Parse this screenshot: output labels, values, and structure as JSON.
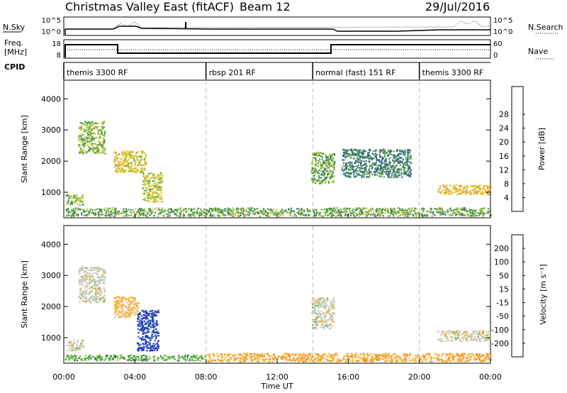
{
  "header": {
    "title": "Christmas Valley East (fitACF)",
    "beam": "Beam 12",
    "date": "29/Jul/2016"
  },
  "strip_labels": {
    "nsky": "N.Sky",
    "freq": "Freq.",
    "freq_unit": "[MHz]",
    "cpid": "CPID",
    "nsearch": "N.Search",
    "nave": "Nave",
    "nsky_top": "10^5",
    "nsky_bottom": "10^0",
    "nsearch_top": "10^5",
    "nsearch_bottom": "10^0",
    "freq_top": "18",
    "freq_bottom": "8",
    "nave_top": "60",
    "nave_bottom": "0"
  },
  "cpid_segments": [
    {
      "label": "themis 3300 RF",
      "start_hour": 0
    },
    {
      "label": "rbsp 201 RF",
      "start_hour": 8
    },
    {
      "label": "normal (fast) 151 RF",
      "start_hour": 14
    },
    {
      "label": "themis 3300 RF",
      "start_hour": 20
    }
  ],
  "axes": {
    "ylabel": "Slant Range [km]",
    "xlabel": "Time UT",
    "x_ticks": [
      "00:00",
      "04:00",
      "08:00",
      "12:00",
      "16:00",
      "20:00",
      "00:00"
    ],
    "y_ticks": [
      "1000",
      "2000",
      "3000",
      "4000"
    ]
  },
  "power_colorbar": {
    "label": "Power [dB]",
    "ticks": [
      "4",
      "8",
      "12",
      "16",
      "20",
      "24",
      "28"
    ],
    "colors": [
      "#1f2fd8",
      "#2f5aa8",
      "#3e7b5c",
      "#5da54a",
      "#b6c93c",
      "#f3c21f",
      "#f39122",
      "#ef4d1c",
      "#e51c1c"
    ]
  },
  "velocity_colorbar": {
    "label": "Velocity [m s⁻¹]",
    "ticks": [
      "200",
      "100",
      "50",
      "15",
      "-15",
      "-50",
      "-100",
      "-200"
    ],
    "colors": [
      "#1a2fc6",
      "#2e55a6",
      "#2f7a4a",
      "#6fbf3c",
      "#c8c8c0",
      "#f4b13a",
      "#f28a1e",
      "#ee5a1a",
      "#e11a1a"
    ]
  },
  "chart_data": [
    {
      "type": "heatmap",
      "panel": "power",
      "x_range_hours": [
        0,
        24
      ],
      "y_range_km": [
        180,
        4600
      ],
      "grid_vertical_hours": [
        8,
        14,
        20
      ],
      "regions": [
        {
          "x": [
            0.1,
            1.1
          ],
          "y": [
            600,
            950
          ],
          "value_db": 14
        },
        {
          "x": [
            0.8,
            2.3
          ],
          "y": [
            2250,
            3300
          ],
          "value_db": 14
        },
        {
          "x": [
            2.8,
            4.6
          ],
          "y": [
            1650,
            2350
          ],
          "value_db": 18
        },
        {
          "x": [
            4.4,
            5.5
          ],
          "y": [
            700,
            1650
          ],
          "value_db": 16
        },
        {
          "x": [
            0.0,
            24.0
          ],
          "y": [
            250,
            520
          ],
          "value_db": 12
        },
        {
          "x": [
            13.9,
            15.2
          ],
          "y": [
            1300,
            2300
          ],
          "value_db": 12
        },
        {
          "x": [
            15.6,
            19.5
          ],
          "y": [
            1500,
            2400
          ],
          "value_db": 8
        },
        {
          "x": [
            21.0,
            24.0
          ],
          "y": [
            950,
            1250
          ],
          "value_db": 20
        }
      ]
    },
    {
      "type": "heatmap",
      "panel": "velocity",
      "x_range_hours": [
        0,
        24
      ],
      "y_range_km": [
        180,
        4600
      ],
      "grid_vertical_hours": [
        8,
        14,
        20
      ],
      "regions": [
        {
          "x": [
            0.1,
            1.1
          ],
          "y": [
            600,
            950
          ],
          "value_ms": 0
        },
        {
          "x": [
            0.8,
            2.3
          ],
          "y": [
            2150,
            3300
          ],
          "value_ms": 0
        },
        {
          "x": [
            2.8,
            4.2
          ],
          "y": [
            1650,
            2350
          ],
          "value_ms": -30
        },
        {
          "x": [
            4.1,
            5.3
          ],
          "y": [
            600,
            1900
          ],
          "value_ms": 200
        },
        {
          "x": [
            0.0,
            8.0
          ],
          "y": [
            280,
            460
          ],
          "value_ms": 40
        },
        {
          "x": [
            8.0,
            24.0
          ],
          "y": [
            250,
            520
          ],
          "value_ms": -40
        },
        {
          "x": [
            13.9,
            15.2
          ],
          "y": [
            1300,
            2300
          ],
          "value_ms": 0
        },
        {
          "x": [
            21.0,
            24.0
          ],
          "y": [
            900,
            1250
          ],
          "value_ms": 0
        }
      ]
    }
  ]
}
